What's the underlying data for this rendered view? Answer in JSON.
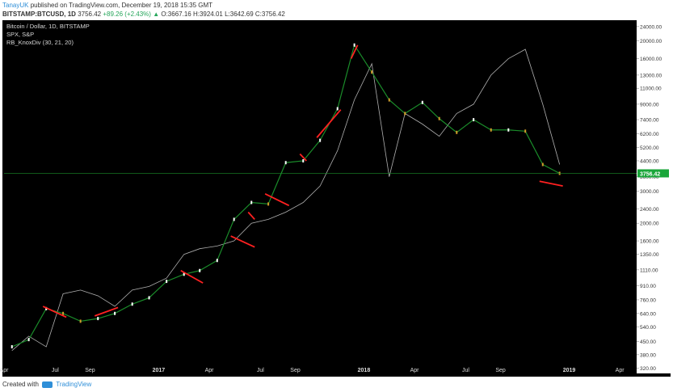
{
  "header": {
    "author": "TanayUK",
    "published_text": "published on TradingView.com, December 19, 2018 15:35 GMT",
    "symbol": "BITSTAMP:BTCUSD, 1D",
    "price": "3756.42",
    "change": "+89.26 (+2.43%)",
    "change_arrow": "▲",
    "ohlc": "O:3667.16 H:3924.01 L:3642.69 C:3756.42"
  },
  "legend": {
    "main_series": "Bitcoin / Dollar, 1D, BITSTAMP",
    "compare_series": "SPX, S&P",
    "indicator": "RB_KnoxDiv (30, 21, 20)"
  },
  "footer": {
    "created_with": "Created with",
    "brand": "TradingView"
  },
  "colors": {
    "background": "#000000",
    "price_line": "#1a8c2a",
    "current_price_bg": "#1aa63a",
    "divergence": "#ff2020",
    "spx": "#cfcfcf",
    "candle_up": "#ffffff",
    "candle_down": "#d19a2b"
  },
  "chart_data": {
    "type": "line",
    "scale": "log",
    "y_ticks": [
      24000,
      20000,
      16000,
      13000,
      11000,
      9000,
      7400,
      6200,
      5200,
      4400,
      3600,
      3000,
      2400,
      2000,
      1600,
      1350,
      1110,
      910,
      760,
      640,
      540,
      450,
      380,
      320
    ],
    "y_tick_labels": [
      "24000.00",
      "20000.00",
      "16000.00",
      "13000.00",
      "11000.00",
      "9000.00",
      "7400.00",
      "6200.00",
      "5200.00",
      "4400.00",
      "3600.00",
      "3000.00",
      "2400.00",
      "2000.00",
      "1600.00",
      "1350.00",
      "1110.00",
      "910.00",
      "760.00",
      "640.00",
      "540.00",
      "450.00",
      "380.00",
      "320.00"
    ],
    "ylim": [
      300,
      26000
    ],
    "x_ticks": [
      "Apr",
      "Jul",
      "Sep",
      "2017",
      "Apr",
      "Jul",
      "Sep",
      "2018",
      "Apr",
      "Jul",
      "Sep",
      "2019",
      "Apr"
    ],
    "current_price": 3756.42,
    "current_price_label": "3756.42",
    "btc_series": {
      "name": "Bitcoin / Dollar, 1D, BITSTAMP",
      "dates": [
        "2016-04",
        "2016-05",
        "2016-06",
        "2016-07",
        "2016-08",
        "2016-09",
        "2016-10",
        "2016-11",
        "2016-12",
        "2017-01",
        "2017-02",
        "2017-03",
        "2017-04",
        "2017-05",
        "2017-06",
        "2017-07",
        "2017-08",
        "2017-09",
        "2017-10",
        "2017-11",
        "2017-12",
        "2018-01",
        "2018-02",
        "2018-03",
        "2018-04",
        "2018-05",
        "2018-06",
        "2018-07",
        "2018-08",
        "2018-09",
        "2018-10",
        "2018-11",
        "2018-12"
      ],
      "values": [
        420,
        460,
        680,
        640,
        580,
        600,
        640,
        720,
        780,
        960,
        1050,
        1100,
        1250,
        2100,
        2600,
        2550,
        4300,
        4400,
        5700,
        8500,
        19000,
        13500,
        9500,
        8000,
        9200,
        7500,
        6300,
        7400,
        6500,
        6500,
        6400,
        4200,
        3756
      ]
    },
    "spx_series": {
      "name": "SPX, S&P",
      "dates": [
        "2016-04",
        "2016-05",
        "2016-06",
        "2016-07",
        "2016-08",
        "2016-09",
        "2016-10",
        "2016-11",
        "2016-12",
        "2017-01",
        "2017-02",
        "2017-03",
        "2017-04",
        "2017-05",
        "2017-06",
        "2017-07",
        "2017-08",
        "2017-09",
        "2017-10",
        "2017-11",
        "2017-12",
        "2018-01",
        "2018-02",
        "2018-03",
        "2018-04",
        "2018-05",
        "2018-06",
        "2018-07",
        "2018-08",
        "2018-09",
        "2018-10",
        "2018-11",
        "2018-12"
      ],
      "values": [
        400,
        480,
        420,
        820,
        860,
        800,
        700,
        860,
        900,
        1000,
        1350,
        1450,
        1500,
        1600,
        2000,
        2100,
        2300,
        2600,
        3200,
        5000,
        9500,
        15000,
        3600,
        8000,
        7000,
        6000,
        8000,
        9000,
        13000,
        16000,
        18000,
        9000,
        4200
      ]
    },
    "divergences": [
      {
        "from": "2016-06",
        "to": "2016-07",
        "from_value": 700,
        "to_value": 610
      },
      {
        "from": "2016-09",
        "to": "2016-10",
        "from_value": 620,
        "to_value": 690
      },
      {
        "from": "2017-02",
        "to": "2017-03",
        "from_value": 1100,
        "to_value": 940
      },
      {
        "from": "2017-05",
        "to": "2017-06",
        "from_value": 1700,
        "to_value": 1480
      },
      {
        "from": "2017-06",
        "to": "2017-06",
        "from_value": 2300,
        "to_value": 2100
      },
      {
        "from": "2017-07",
        "to": "2017-08",
        "from_value": 2900,
        "to_value": 2500
      },
      {
        "from": "2017-09",
        "to": "2017-09",
        "from_value": 4800,
        "to_value": 4400
      },
      {
        "from": "2017-10",
        "to": "2017-11",
        "from_value": 5900,
        "to_value": 8400
      },
      {
        "from": "2017-12",
        "to": "2017-12",
        "from_value": 16000,
        "to_value": 19000
      },
      {
        "from": "2018-11",
        "to": "2018-12",
        "from_value": 3400,
        "to_value": 3200
      }
    ]
  }
}
